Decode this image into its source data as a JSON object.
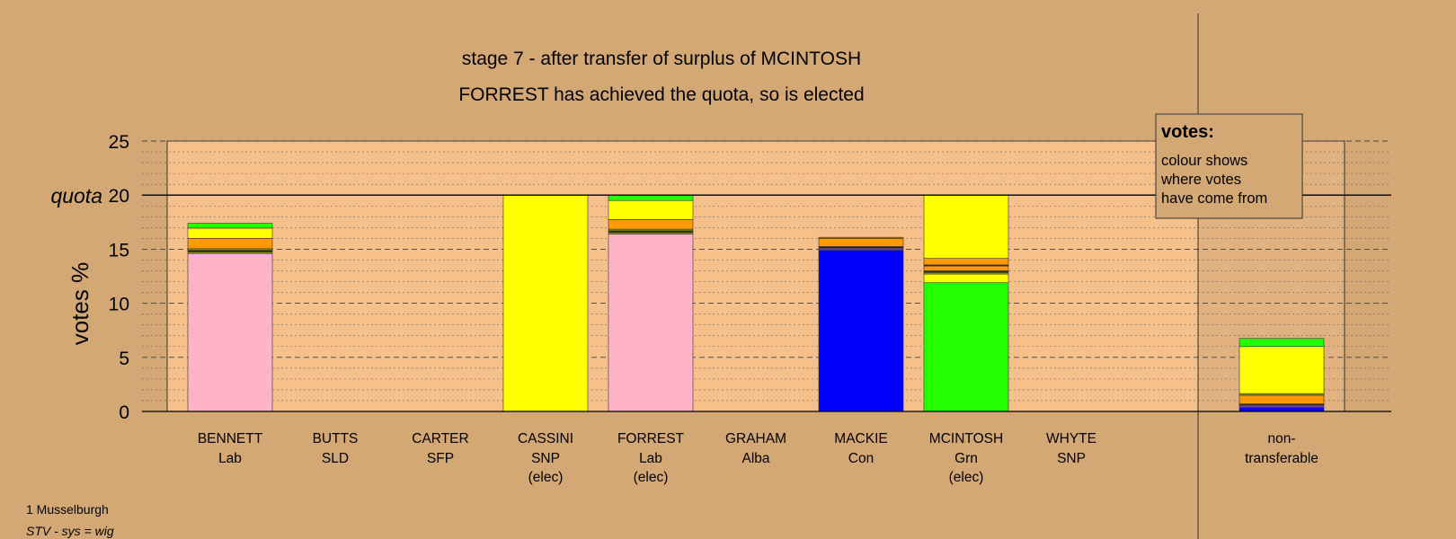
{
  "chart_data": {
    "type": "bar",
    "stacked": true,
    "title": "stage 7 - after transfer of surplus of MCINTOSH",
    "subtitle": "FORREST has achieved the quota, so is elected",
    "ylabel": "votes %",
    "ylim": [
      0,
      25
    ],
    "yticks": [
      "0",
      "5",
      "10",
      "15",
      "20",
      "25"
    ],
    "quota": 20,
    "quota_label": "quota",
    "grid": "dashed major every 5, dotted minor every 1",
    "categories": [
      {
        "name": "BENNETT",
        "party": "Lab",
        "status": ""
      },
      {
        "name": "BUTTS",
        "party": "SLD",
        "status": ""
      },
      {
        "name": "CARTER",
        "party": "SFP",
        "status": ""
      },
      {
        "name": "CASSINI",
        "party": "SNP",
        "status": "(elec)"
      },
      {
        "name": "FORREST",
        "party": "Lab",
        "status": "(elec)"
      },
      {
        "name": "GRAHAM",
        "party": "Alba",
        "status": ""
      },
      {
        "name": "MACKIE",
        "party": "Con",
        "status": ""
      },
      {
        "name": "MCINTOSH",
        "party": "Grn",
        "status": "(elec)"
      },
      {
        "name": "WHYTE",
        "party": "SNP",
        "status": ""
      }
    ],
    "nontransferable": {
      "line1": "non-",
      "line2": "transferable"
    },
    "colors": {
      "Lab": "#ffb3c6",
      "Con": "#0000ff",
      "SNP": "#ffff00",
      "Grn": "#22ff00",
      "SFP": "#ff9900",
      "SLD": "#ff9900",
      "Alba": "#6a3d9a",
      "dark": "#2a2a2a",
      "olive": "#999900"
    },
    "bars": [
      {
        "segments": [
          {
            "party": "Lab",
            "value": 14.6
          },
          {
            "party": "olive",
            "value": 0.15
          },
          {
            "party": "dark",
            "value": 0.15
          },
          {
            "party": "olive",
            "value": 0.15
          },
          {
            "party": "SFP",
            "value": 0.95
          },
          {
            "party": "SNP",
            "value": 0.95
          },
          {
            "party": "Grn",
            "value": 0.45
          }
        ]
      },
      {
        "segments": []
      },
      {
        "segments": []
      },
      {
        "segments": [
          {
            "party": "SNP",
            "value": 20.0
          }
        ]
      },
      {
        "segments": [
          {
            "party": "Lab",
            "value": 16.4
          },
          {
            "party": "olive",
            "value": 0.15
          },
          {
            "party": "dark",
            "value": 0.15
          },
          {
            "party": "olive",
            "value": 0.15
          },
          {
            "party": "SFP",
            "value": 0.9
          },
          {
            "party": "SNP",
            "value": 1.75
          },
          {
            "party": "Grn",
            "value": 0.5
          }
        ]
      },
      {
        "segments": []
      },
      {
        "segments": [
          {
            "party": "Con",
            "value": 14.9
          },
          {
            "party": "Alba",
            "value": 0.2
          },
          {
            "party": "dark",
            "value": 0.15
          },
          {
            "party": "SFP",
            "value": 0.75
          },
          {
            "party": "olive",
            "value": 0.1
          }
        ]
      },
      {
        "segments": [
          {
            "party": "Grn",
            "value": 11.9
          },
          {
            "party": "SNP",
            "value": 0.8
          },
          {
            "party": "olive",
            "value": 0.15
          },
          {
            "party": "dark",
            "value": 0.15
          },
          {
            "party": "SFP",
            "value": 0.45
          },
          {
            "party": "dark",
            "value": 0.1
          },
          {
            "party": "SFP",
            "value": 0.6
          },
          {
            "party": "SNP",
            "value": 5.85
          }
        ]
      },
      {
        "segments": []
      }
    ],
    "nontransferable_segments": [
      {
        "party": "Con",
        "value": 0.35
      },
      {
        "party": "Alba",
        "value": 0.25
      },
      {
        "party": "dark",
        "value": 0.1
      },
      {
        "party": "SFP",
        "value": 0.8
      },
      {
        "party": "olive",
        "value": 0.15
      },
      {
        "party": "SNP",
        "value": 4.35
      },
      {
        "party": "Grn",
        "value": 0.75
      }
    ]
  },
  "legend": {
    "title": "votes:",
    "lines": [
      "colour shows",
      "where votes",
      "have come from"
    ]
  },
  "footer": {
    "location": "1 Musselburgh",
    "system": "STV - sys = wig"
  }
}
